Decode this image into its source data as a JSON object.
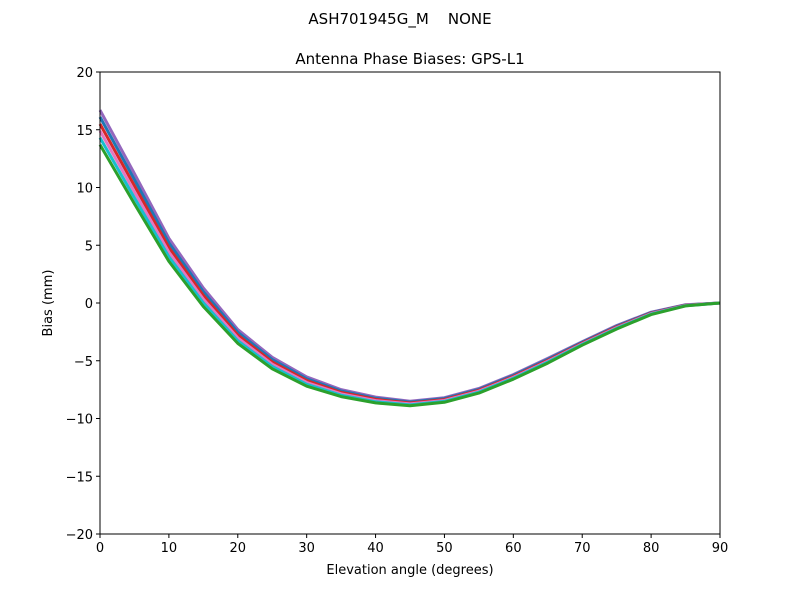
{
  "chart_data": {
    "type": "line",
    "suptitle": "ASH701945G_M    NONE",
    "title": "Antenna Phase Biases: GPS-L1",
    "xlabel": "Elevation angle (degrees)",
    "ylabel": "Bias (mm)",
    "xlim": [
      0,
      90
    ],
    "ylim": [
      -20,
      20
    ],
    "xticks": [
      0,
      10,
      20,
      30,
      40,
      50,
      60,
      70,
      80,
      90
    ],
    "xtick_labels": [
      "0",
      "10",
      "20",
      "30",
      "40",
      "50",
      "60",
      "70",
      "80",
      "90"
    ],
    "yticks": [
      -20,
      -15,
      -10,
      -5,
      0,
      5,
      10,
      15,
      20
    ],
    "ytick_labels": [
      "−20",
      "−15",
      "−10",
      "−5",
      "0",
      "5",
      "10",
      "15",
      "20"
    ],
    "grid": false,
    "legend": "none",
    "x": [
      0,
      5,
      10,
      15,
      20,
      25,
      30,
      35,
      40,
      45,
      50,
      55,
      60,
      65,
      70,
      75,
      80,
      85,
      90
    ],
    "series": [
      {
        "color": "#9467bd",
        "values": [
          16.7,
          11.2,
          5.6,
          1.3,
          -2.3,
          -4.7,
          -6.4,
          -7.5,
          -8.15,
          -8.5,
          -8.2,
          -7.4,
          -6.2,
          -4.8,
          -3.35,
          -1.95,
          -0.8,
          -0.15,
          0
        ]
      },
      {
        "color": "#1f77b4",
        "values": [
          16.1,
          10.68,
          5.2,
          0.98,
          -2.54,
          -4.9,
          -6.56,
          -7.62,
          -8.25,
          -8.58,
          -8.28,
          -7.48,
          -6.28,
          -4.88,
          -3.41,
          -2.01,
          -0.84,
          -0.17,
          0
        ]
      },
      {
        "color": "#d62728",
        "values": [
          15.5,
          10.16,
          4.8,
          0.66,
          -2.78,
          -5.1,
          -6.72,
          -7.74,
          -8.35,
          -8.66,
          -8.36,
          -7.56,
          -6.36,
          -4.96,
          -3.47,
          -2.07,
          -0.88,
          -0.19,
          0
        ]
      },
      {
        "color": "#e377c2",
        "values": [
          14.9,
          9.64,
          4.4,
          0.34,
          -3.02,
          -5.3,
          -6.88,
          -7.86,
          -8.45,
          -8.74,
          -8.44,
          -7.64,
          -6.44,
          -5.04,
          -3.53,
          -2.13,
          -0.92,
          -0.21,
          0
        ]
      },
      {
        "color": "#17becf",
        "values": [
          14.3,
          9.12,
          4.0,
          0.02,
          -3.26,
          -5.5,
          -7.04,
          -7.98,
          -8.55,
          -8.82,
          -8.52,
          -7.72,
          -6.52,
          -5.12,
          -3.59,
          -2.19,
          -0.96,
          -0.23,
          0
        ]
      },
      {
        "color": "#2ca02c",
        "values": [
          13.7,
          8.6,
          3.6,
          -0.3,
          -3.5,
          -5.7,
          -7.2,
          -8.1,
          -8.65,
          -8.9,
          -8.6,
          -7.8,
          -6.6,
          -5.2,
          -3.65,
          -2.25,
          -1.0,
          -0.25,
          0
        ]
      }
    ]
  }
}
